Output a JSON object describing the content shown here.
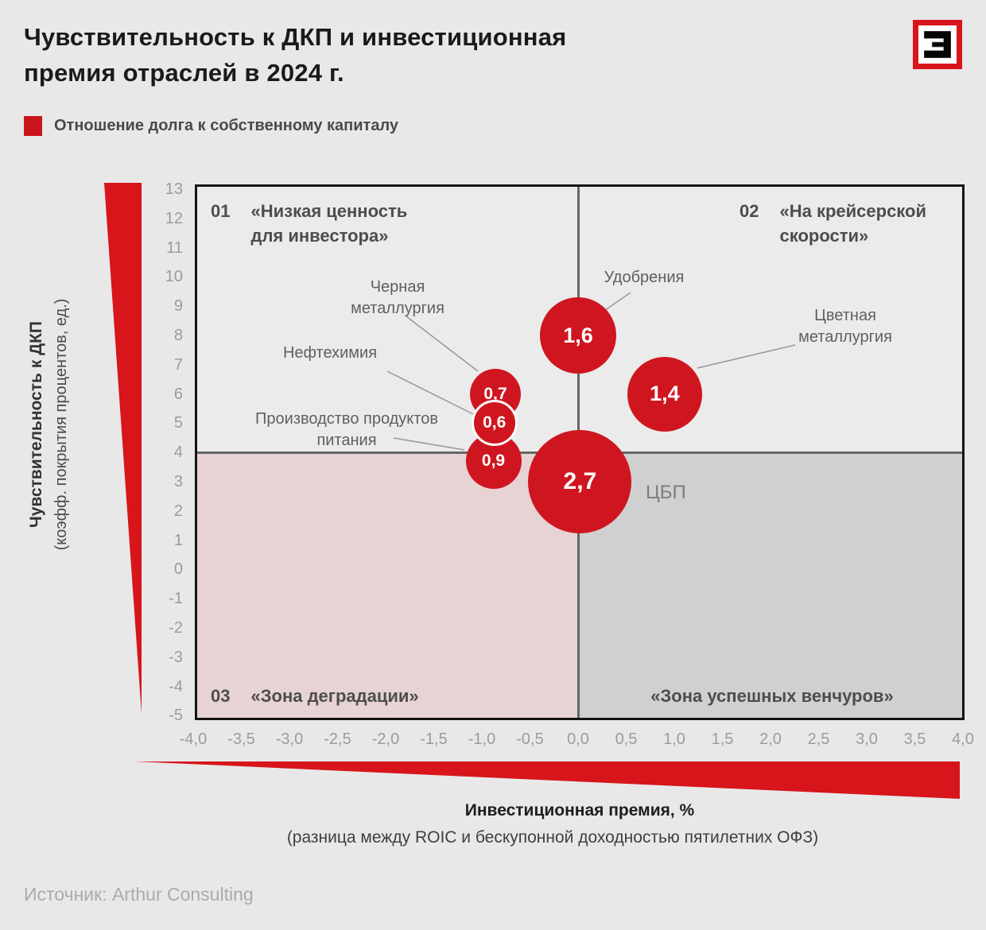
{
  "title": {
    "line1": "Чувствительность к ДКП и инвестиционная",
    "line2": "премия отраслей в 2024 г."
  },
  "logo": {
    "name": "expert-magazine-logo"
  },
  "legend": {
    "label": "Отношение долга к собственному капиталу",
    "color": "#c9151b"
  },
  "source": "Источник: Arthur Consulting",
  "colors": {
    "bubble_red": "#cf1620",
    "accent_red": "#d7151b",
    "quadrant_pink": "#e7d2d4",
    "quadrant_gray": "#d0d0d0",
    "background": "#e8e8e8"
  },
  "chart_data": {
    "type": "scatter",
    "title": "Чувствительность к ДКП и инвестиционная премия отраслей в 2024 г.",
    "bubble_size_meaning": "Отношение долга к собственному капиталу",
    "x_axis": {
      "title": "Инвестиционная премия, %",
      "subtitle": "(разница между ROIC и бескупонной доходностью пятилетних ОФЗ)",
      "range": [
        -4.0,
        4.0
      ],
      "tick_labels": [
        "-4,0",
        "-3,5",
        "-3,0",
        "-2,5",
        "-2,0",
        "-1,5",
        "-1,0",
        "-0,5",
        "0,0",
        "0,5",
        "1,0",
        "1,5",
        "2,0",
        "2,5",
        "3,0",
        "3,5",
        "4,0"
      ],
      "tick_values": [
        -4,
        -3.5,
        -3,
        -2.5,
        -2,
        -1.5,
        -1,
        -0.5,
        0,
        0.5,
        1,
        1.5,
        2,
        2.5,
        3,
        3.5,
        4
      ]
    },
    "y_axis": {
      "title": "Чувствительность к ДКП",
      "subtitle": "(коэфф. покрытия процентов, ед.)",
      "range": [
        -5,
        13
      ],
      "tick_values": [
        13,
        12,
        11,
        10,
        9,
        8,
        7,
        6,
        5,
        4,
        3,
        2,
        1,
        0,
        -1,
        -2,
        -3,
        -4,
        -5
      ]
    },
    "dividers": {
      "x": 0,
      "y": 4
    },
    "quadrants": [
      {
        "number": "01",
        "lines": [
          "«Низкая ценность",
          "для инвестора»"
        ],
        "label": "«Низкая ценность для инвестора»",
        "position": "top-left"
      },
      {
        "number": "02",
        "lines": [
          "«На крейсерской",
          "скорости»"
        ],
        "label": "«На крейсерской скорости»",
        "position": "top-right"
      },
      {
        "number": "03",
        "lines": [
          "«Зона деградации»"
        ],
        "label": "«Зона деградации»",
        "position": "bottom-left"
      },
      {
        "number": "",
        "lines": [
          "«Зона успешных венчуров»"
        ],
        "label": "«Зона успешных венчуров»",
        "position": "bottom-right"
      }
    ],
    "bubbles": [
      {
        "name": "Удобрения",
        "label_lines": [
          "Удобрения"
        ],
        "x": 0.0,
        "y": 8.0,
        "value": 1.6,
        "value_label": "1,6"
      },
      {
        "name": "Цветная металлургия",
        "label_lines": [
          "Цветная",
          "металлургия"
        ],
        "x": 0.9,
        "y": 6.0,
        "value": 1.4,
        "value_label": "1,4"
      },
      {
        "name": "Черная металлургия",
        "label_lines": [
          "Черная",
          "металлургия"
        ],
        "x": -0.86,
        "y": 6.0,
        "value": 0.7,
        "value_label": "0,7"
      },
      {
        "name": "Нефтехимия",
        "label_lines": [
          "Нефтехимия"
        ],
        "x": -0.87,
        "y": 5.0,
        "value": 0.6,
        "value_label": "0,6"
      },
      {
        "name": "Производство продуктов питания",
        "label_lines": [
          "Производство продуктов",
          "питания"
        ],
        "x": -0.88,
        "y": 3.7,
        "value": 0.9,
        "value_label": "0,9"
      },
      {
        "name": "ЦБП",
        "label_lines": [
          "ЦБП"
        ],
        "x": 0.02,
        "y": 3.0,
        "value": 2.7,
        "value_label": "2,7"
      }
    ]
  }
}
